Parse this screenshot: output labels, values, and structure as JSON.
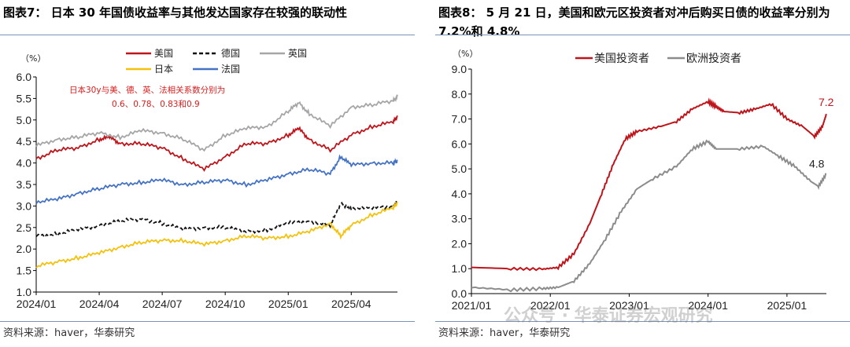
{
  "chart_data": [
    {
      "type": "line",
      "title": "图表7：  日本 30 年国债收益率与其他发达国家存在较强的联动性",
      "unit_label": "（%）",
      "ylim": [
        1.0,
        6.0
      ],
      "y_ticks": [
        "6.0",
        "5.5",
        "5.0",
        "4.5",
        "4.0",
        "3.5",
        "3.0",
        "2.5",
        "2.0",
        "1.5",
        "1.0"
      ],
      "x_ticks": [
        "2024/01",
        "2024/04",
        "2024/07",
        "2024/10",
        "2025/01",
        "2025/04"
      ],
      "x_range_months": [
        0,
        17.2
      ],
      "annotation": [
        "日本30y与美、德、英、法相关系数分别为",
        "0.6、0.78、0.83和0.9"
      ],
      "source": "资料来源：haver，华泰研究",
      "series": [
        {
          "name": "美国",
          "color": "#c0141b",
          "dash": "",
          "points": [
            [
              0,
              4.1
            ],
            [
              1,
              4.3
            ],
            [
              2,
              4.35
            ],
            [
              3,
              4.55
            ],
            [
              3.5,
              4.6
            ],
            [
              4,
              4.45
            ],
            [
              5,
              4.45
            ],
            [
              6,
              4.35
            ],
            [
              7,
              4.1
            ],
            [
              8,
              3.85
            ],
            [
              9,
              4.15
            ],
            [
              10,
              4.45
            ],
            [
              11,
              4.45
            ],
            [
              12,
              4.65
            ],
            [
              12.5,
              4.8
            ],
            [
              13,
              4.55
            ],
            [
              14,
              4.3
            ],
            [
              15,
              4.65
            ],
            [
              16,
              4.85
            ],
            [
              17,
              4.95
            ],
            [
              17.2,
              5.1
            ]
          ]
        },
        {
          "name": "德国",
          "color": "#111111",
          "dash": "5,3",
          "points": [
            [
              0,
              2.3
            ],
            [
              1,
              2.35
            ],
            [
              2,
              2.45
            ],
            [
              3,
              2.55
            ],
            [
              4,
              2.65
            ],
            [
              5,
              2.7
            ],
            [
              6,
              2.6
            ],
            [
              7,
              2.45
            ],
            [
              8,
              2.5
            ],
            [
              9,
              2.5
            ],
            [
              10,
              2.4
            ],
            [
              11,
              2.45
            ],
            [
              12,
              2.6
            ],
            [
              13,
              2.65
            ],
            [
              14,
              2.55
            ],
            [
              14.5,
              3.05
            ],
            [
              15,
              2.95
            ],
            [
              16,
              2.95
            ],
            [
              17,
              3.0
            ],
            [
              17.2,
              3.1
            ]
          ]
        },
        {
          "name": "英国",
          "color": "#a6a6a6",
          "dash": "",
          "points": [
            [
              0,
              4.4
            ],
            [
              1,
              4.55
            ],
            [
              2,
              4.6
            ],
            [
              3,
              4.7
            ],
            [
              4,
              4.6
            ],
            [
              5,
              4.75
            ],
            [
              6,
              4.7
            ],
            [
              7,
              4.55
            ],
            [
              8,
              4.3
            ],
            [
              9,
              4.65
            ],
            [
              10,
              4.8
            ],
            [
              11,
              4.85
            ],
            [
              12,
              5.2
            ],
            [
              12.5,
              5.4
            ],
            [
              13,
              5.15
            ],
            [
              14,
              4.85
            ],
            [
              15,
              5.3
            ],
            [
              16,
              5.35
            ],
            [
              17,
              5.45
            ],
            [
              17.2,
              5.55
            ]
          ]
        },
        {
          "name": "日本",
          "color": "#f4c20d",
          "dash": "",
          "points": [
            [
              0,
              1.6
            ],
            [
              1,
              1.7
            ],
            [
              2,
              1.8
            ],
            [
              3,
              1.9
            ],
            [
              4,
              2.05
            ],
            [
              5,
              2.15
            ],
            [
              6,
              2.2
            ],
            [
              7,
              2.2
            ],
            [
              8,
              2.1
            ],
            [
              9,
              2.2
            ],
            [
              10,
              2.3
            ],
            [
              11,
              2.25
            ],
            [
              12,
              2.3
            ],
            [
              13,
              2.4
            ],
            [
              14,
              2.6
            ],
            [
              14.5,
              2.3
            ],
            [
              15,
              2.55
            ],
            [
              16,
              2.8
            ],
            [
              17,
              2.95
            ],
            [
              17.2,
              3.1
            ]
          ]
        },
        {
          "name": "法国",
          "color": "#4472c4",
          "dash": "",
          "points": [
            [
              0,
              3.1
            ],
            [
              1,
              3.15
            ],
            [
              2,
              3.3
            ],
            [
              3,
              3.4
            ],
            [
              4,
              3.5
            ],
            [
              5,
              3.55
            ],
            [
              6,
              3.6
            ],
            [
              7,
              3.5
            ],
            [
              8,
              3.55
            ],
            [
              9,
              3.6
            ],
            [
              10,
              3.5
            ],
            [
              11,
              3.6
            ],
            [
              12,
              3.75
            ],
            [
              13,
              3.85
            ],
            [
              14,
              3.75
            ],
            [
              14.5,
              4.15
            ],
            [
              15,
              3.95
            ],
            [
              16,
              4.0
            ],
            [
              17,
              4.0
            ],
            [
              17.2,
              4.05
            ]
          ]
        }
      ]
    },
    {
      "type": "line",
      "title": "图表8：  5 月 21 日，美国和欧元区投资者对冲后购买日债的收益率分别为 7.2%和 4.8%",
      "unit_label": "（%）",
      "ylim": [
        0.0,
        9.0
      ],
      "y_ticks": [
        "9.0",
        "8.0",
        "7.0",
        "6.0",
        "5.0",
        "4.0",
        "3.0",
        "2.0",
        "1.0",
        "0.0"
      ],
      "x_ticks": [
        "2021/01",
        "2022/01",
        "2023/01",
        "2024/01",
        "2025/01"
      ],
      "x_range_years": [
        0,
        4.5
      ],
      "end_labels": [
        "7.2",
        "4.8"
      ],
      "source": "资料来源：haver，华泰研究",
      "series": [
        {
          "name": "美国投资者",
          "color": "#c0141b",
          "dash": "",
          "points": [
            [
              0,
              1.05
            ],
            [
              0.5,
              1.0
            ],
            [
              0.9,
              0.98
            ],
            [
              1.1,
              1.05
            ],
            [
              1.3,
              1.6
            ],
            [
              1.5,
              2.8
            ],
            [
              1.65,
              4.0
            ],
            [
              1.8,
              5.2
            ],
            [
              1.95,
              6.2
            ],
            [
              2.1,
              6.5
            ],
            [
              2.4,
              6.7
            ],
            [
              2.6,
              6.9
            ],
            [
              2.8,
              7.4
            ],
            [
              3.0,
              7.7
            ],
            [
              3.1,
              7.5
            ],
            [
              3.2,
              7.3
            ],
            [
              3.4,
              7.25
            ],
            [
              3.6,
              7.4
            ],
            [
              3.8,
              7.6
            ],
            [
              4.0,
              7.0
            ],
            [
              4.2,
              6.7
            ],
            [
              4.35,
              6.3
            ],
            [
              4.45,
              6.7
            ],
            [
              4.5,
              7.2
            ]
          ]
        },
        {
          "name": "欧洲投资者",
          "color": "#8c8c8c",
          "dash": "",
          "points": [
            [
              0,
              0.25
            ],
            [
              0.5,
              0.15
            ],
            [
              0.9,
              0.2
            ],
            [
              1.1,
              0.25
            ],
            [
              1.3,
              0.5
            ],
            [
              1.5,
              1.2
            ],
            [
              1.7,
              2.2
            ],
            [
              1.9,
              3.3
            ],
            [
              2.1,
              4.2
            ],
            [
              2.3,
              4.6
            ],
            [
              2.6,
              5.1
            ],
            [
              2.8,
              5.8
            ],
            [
              3.0,
              6.1
            ],
            [
              3.1,
              5.8
            ],
            [
              3.4,
              5.8
            ],
            [
              3.7,
              5.9
            ],
            [
              3.9,
              5.5
            ],
            [
              4.1,
              5.1
            ],
            [
              4.3,
              4.5
            ],
            [
              4.4,
              4.3
            ],
            [
              4.5,
              4.8
            ]
          ]
        }
      ]
    }
  ],
  "watermark": "公众号 · 华泰证券宏观研究"
}
